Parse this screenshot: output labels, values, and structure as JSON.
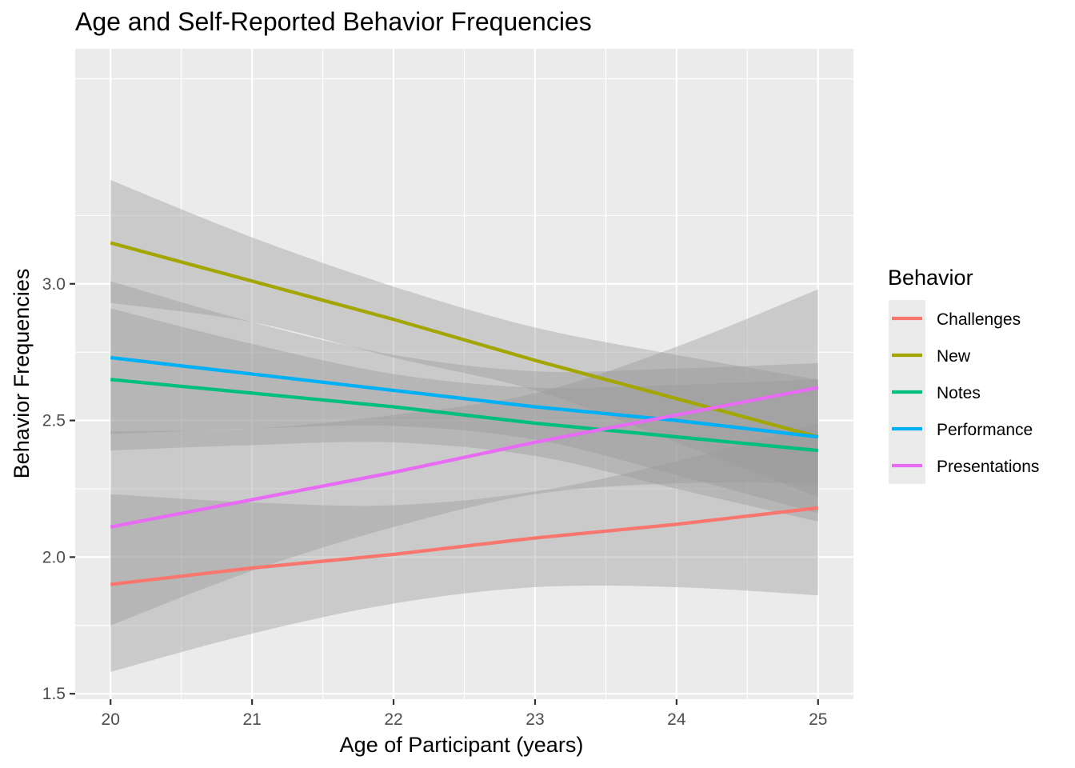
{
  "chart_data": {
    "type": "line",
    "title": "Age and Self-Reported Behavior Frequencies",
    "xlabel": "Age of Participant (years)",
    "ylabel": "Behavior Frequencies",
    "xlim": [
      19.75,
      25.25
    ],
    "ylim": [
      1.48,
      3.86
    ],
    "x_ticks": [
      20,
      21,
      22,
      23,
      24,
      25
    ],
    "x_tick_labels": [
      "20",
      "21",
      "22",
      "23",
      "24",
      "25"
    ],
    "y_ticks": [
      1.5,
      2.0,
      2.5,
      3.0
    ],
    "y_tick_labels": [
      "1.5",
      "2.0",
      "2.5",
      "3.0"
    ],
    "grid": true,
    "legend": {
      "title": "Behavior",
      "position": "right"
    },
    "ribbon_color": "#999999",
    "x": [
      20,
      21,
      22,
      23,
      24,
      25
    ],
    "series": [
      {
        "name": "Challenges",
        "color": "#F8766D",
        "values": [
          1.9,
          1.96,
          2.01,
          2.07,
          2.12,
          2.18
        ],
        "ci_lower": [
          1.58,
          1.72,
          1.83,
          1.89,
          1.89,
          1.86
        ],
        "ci_upper": [
          2.23,
          2.2,
          2.19,
          2.24,
          2.35,
          2.49
        ]
      },
      {
        "name": "New",
        "color": "#A3A500",
        "values": [
          3.15,
          3.01,
          2.87,
          2.72,
          2.58,
          2.44
        ],
        "ci_lower": [
          2.93,
          2.86,
          2.73,
          2.61,
          2.42,
          2.22
        ],
        "ci_upper": [
          3.38,
          3.17,
          2.99,
          2.84,
          2.74,
          2.65
        ]
      },
      {
        "name": "Notes",
        "color": "#00BF7D",
        "values": [
          2.65,
          2.6,
          2.55,
          2.49,
          2.44,
          2.39
        ],
        "ci_lower": [
          2.39,
          2.41,
          2.42,
          2.37,
          2.25,
          2.13
        ],
        "ci_upper": [
          2.91,
          2.78,
          2.67,
          2.62,
          2.63,
          2.65
        ]
      },
      {
        "name": "Performance",
        "color": "#00B0F6",
        "values": [
          2.73,
          2.67,
          2.61,
          2.55,
          2.5,
          2.44
        ],
        "ci_lower": [
          2.45,
          2.47,
          2.48,
          2.43,
          2.3,
          2.16
        ],
        "ci_upper": [
          3.01,
          2.86,
          2.74,
          2.68,
          2.69,
          2.71
        ]
      },
      {
        "name": "Presentations",
        "color": "#E76BF3",
        "values": [
          2.11,
          2.21,
          2.31,
          2.42,
          2.52,
          2.62
        ],
        "ci_lower": [
          1.75,
          1.95,
          2.11,
          2.23,
          2.27,
          2.27
        ],
        "ci_upper": [
          2.46,
          2.47,
          2.52,
          2.6,
          2.77,
          2.98
        ]
      }
    ]
  }
}
